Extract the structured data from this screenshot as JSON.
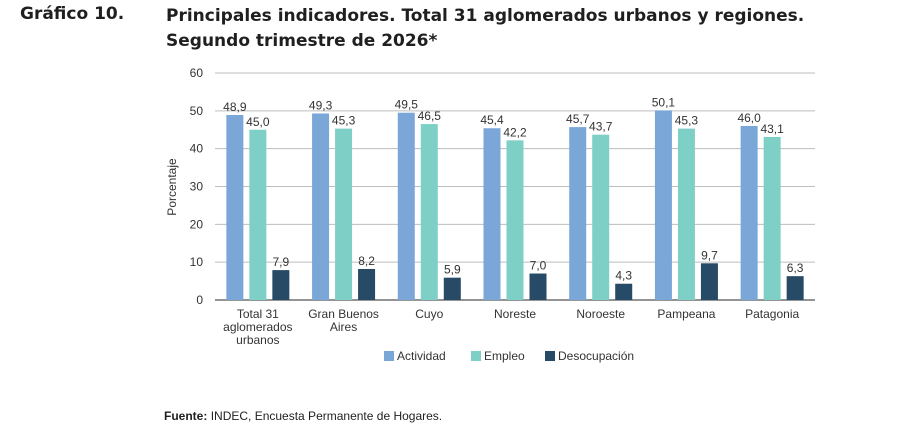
{
  "figure_label": "Gráfico 10.",
  "title_line1": "Principales indicadores. Total 31 aglomerados urbanos y regiones.",
  "title_line2": "Segundo trimestre de 2026*",
  "source_label": "Fuente:",
  "source_text": "INDEC, Encuesta Permanente de Hogares.",
  "colors": {
    "actividad": "#7aa6d8",
    "empleo": "#7ed0c6",
    "desocupacion": "#274a66"
  },
  "chart_data": {
    "type": "bar",
    "ylabel": "Porcentaje",
    "ylim": [
      0,
      60
    ],
    "yticks": [
      0,
      10,
      20,
      30,
      40,
      50,
      60
    ],
    "grid": true,
    "legend_position": "bottom",
    "categories": [
      [
        "Total 31",
        "aglomerados",
        "urbanos"
      ],
      [
        "Gran Buenos",
        "Aires"
      ],
      [
        "Cuyo"
      ],
      [
        "Noreste"
      ],
      [
        "Noroeste"
      ],
      [
        "Pampeana"
      ],
      [
        "Patagonia"
      ]
    ],
    "series": [
      {
        "name": "Actividad",
        "values": [
          48.9,
          49.3,
          49.5,
          45.4,
          45.7,
          50.1,
          46.0
        ],
        "labels": [
          "48,9",
          "49,3",
          "49,5",
          "45,4",
          "45,7",
          "50,1",
          "46,0"
        ]
      },
      {
        "name": "Empleo",
        "values": [
          45.0,
          45.3,
          46.5,
          42.2,
          43.7,
          45.3,
          43.1
        ],
        "labels": [
          "45,0",
          "45,3",
          "46,5",
          "42,2",
          "43,7",
          "45,3",
          "43,1"
        ]
      },
      {
        "name": "Desocupación",
        "values": [
          7.9,
          8.2,
          5.9,
          7.0,
          4.3,
          9.7,
          6.3
        ],
        "labels": [
          "7,9",
          "8,2",
          "5,9",
          "7,0",
          "4,3",
          "9,7",
          "6,3"
        ]
      }
    ]
  }
}
